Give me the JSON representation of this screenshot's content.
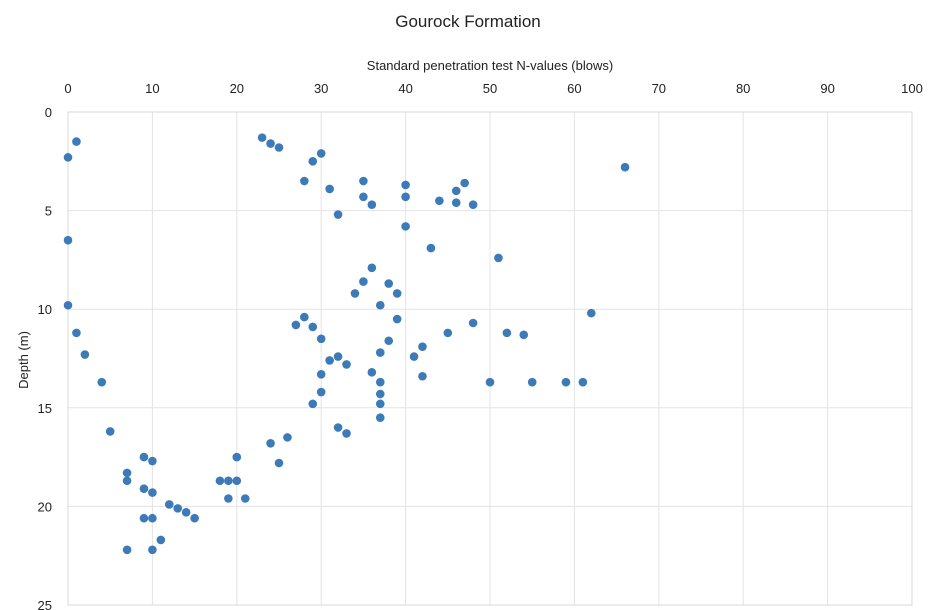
{
  "chart_data": {
    "type": "scatter",
    "title": "Gourock Formation",
    "xlabel": "Standard penetration test N-values (blows)",
    "ylabel": "Depth (m)",
    "xlim": [
      0,
      100
    ],
    "ylim": [
      0,
      25
    ],
    "y_inverted": true,
    "x_axis_position": "top",
    "x_ticks": [
      "0",
      "10",
      "20",
      "30",
      "40",
      "50",
      "60",
      "70",
      "80",
      "90",
      "100"
    ],
    "y_ticks": [
      "0",
      "5",
      "10",
      "15",
      "20",
      "25"
    ],
    "grid": true,
    "marker_color": "#3d7ab8",
    "points": [
      [
        66,
        2.8
      ],
      [
        47,
        3.6
      ],
      [
        46,
        4.0
      ],
      [
        48,
        4.7
      ],
      [
        46,
        4.6
      ],
      [
        44,
        4.5
      ],
      [
        51,
        7.4
      ],
      [
        43,
        6.9
      ],
      [
        62,
        10.2
      ],
      [
        48,
        10.7
      ],
      [
        52,
        11.2
      ],
      [
        54,
        11.3
      ],
      [
        45,
        11.2
      ],
      [
        42,
        11.9
      ],
      [
        41,
        12.4
      ],
      [
        42,
        13.4
      ],
      [
        50,
        13.7
      ],
      [
        55,
        13.7
      ],
      [
        59,
        13.7
      ],
      [
        61,
        13.7
      ],
      [
        40,
        3.7
      ],
      [
        40,
        4.3
      ],
      [
        40,
        5.8
      ],
      [
        39,
        9.2
      ],
      [
        39,
        10.5
      ],
      [
        38,
        8.7
      ],
      [
        37,
        9.8
      ],
      [
        38,
        11.6
      ],
      [
        37,
        12.2
      ],
      [
        37,
        13.7
      ],
      [
        37,
        14.3
      ],
      [
        37,
        14.8
      ],
      [
        37,
        15.5
      ],
      [
        36,
        13.2
      ],
      [
        35,
        4.3
      ],
      [
        35,
        3.5
      ],
      [
        36,
        4.7
      ],
      [
        36,
        7.9
      ],
      [
        35,
        8.6
      ],
      [
        34,
        9.2
      ],
      [
        33,
        16.3
      ],
      [
        32,
        16.0
      ],
      [
        33,
        12.8
      ],
      [
        32,
        12.4
      ],
      [
        31,
        12.6
      ],
      [
        30,
        11.5
      ],
      [
        30,
        13.3
      ],
      [
        29,
        14.8
      ],
      [
        30,
        14.2
      ],
      [
        28,
        10.4
      ],
      [
        29,
        10.9
      ],
      [
        27,
        10.8
      ],
      [
        26,
        16.5
      ],
      [
        25,
        17.8
      ],
      [
        24,
        16.8
      ],
      [
        21,
        19.6
      ],
      [
        19,
        19.6
      ],
      [
        20,
        18.7
      ],
      [
        19,
        18.7
      ],
      [
        18,
        18.7
      ],
      [
        20,
        17.5
      ],
      [
        15,
        20.6
      ],
      [
        14,
        20.3
      ],
      [
        13,
        20.1
      ],
      [
        12,
        19.9
      ],
      [
        11,
        21.7
      ],
      [
        10,
        22.2
      ],
      [
        7,
        22.2
      ],
      [
        10,
        20.6
      ],
      [
        9,
        20.6
      ],
      [
        10,
        19.3
      ],
      [
        9,
        19.1
      ],
      [
        7,
        18.3
      ],
      [
        7,
        18.7
      ],
      [
        9,
        17.5
      ],
      [
        10,
        17.7
      ],
      [
        5,
        16.2
      ],
      [
        4,
        13.7
      ],
      [
        2,
        12.3
      ],
      [
        1,
        11.2
      ],
      [
        0,
        9.8
      ],
      [
        0,
        6.5
      ],
      [
        0,
        2.3
      ],
      [
        1,
        1.5
      ],
      [
        23,
        1.3
      ],
      [
        24,
        1.6
      ],
      [
        25,
        1.8
      ],
      [
        29,
        2.5
      ],
      [
        30,
        2.1
      ],
      [
        28,
        3.5
      ],
      [
        31,
        3.9
      ],
      [
        32,
        5.2
      ]
    ]
  }
}
